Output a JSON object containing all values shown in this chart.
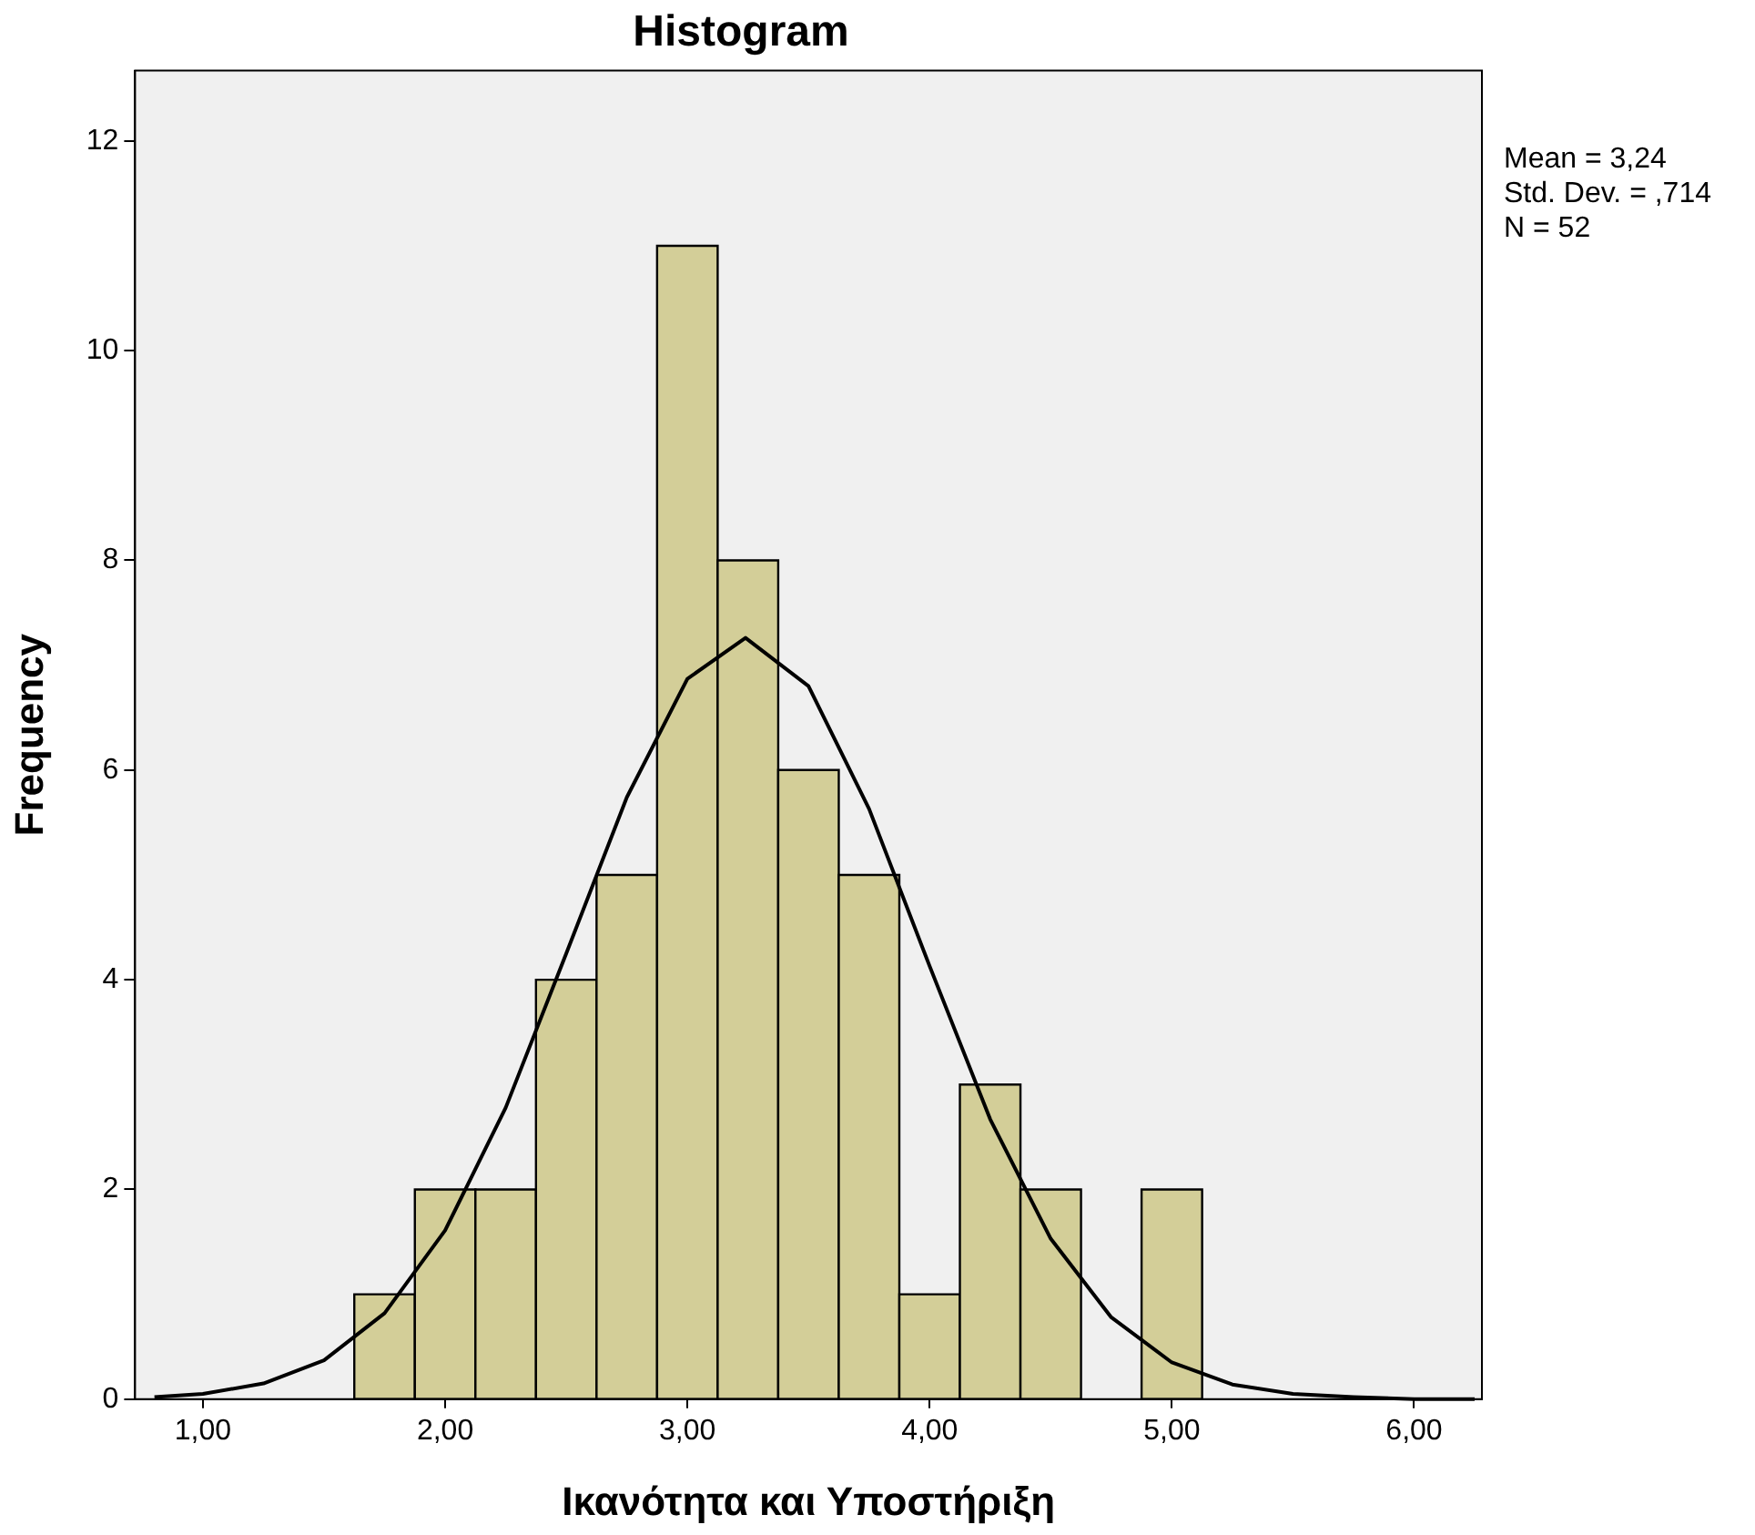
{
  "chart_data": {
    "type": "histogram",
    "title": "Histogram",
    "xlabel": "Ικανότητα και Υποστήριξη",
    "ylabel": "Frequency",
    "bins": [
      1.625,
      1.875,
      2.125,
      2.375,
      2.625,
      2.875,
      3.125,
      3.375,
      3.625,
      3.875,
      4.125,
      4.375,
      4.625,
      4.875,
      5.125
    ],
    "values": [
      1,
      2,
      2,
      4,
      5,
      11,
      8,
      6,
      5,
      1,
      3,
      2,
      0,
      2
    ],
    "color": "#d3ce98",
    "series": [
      {
        "type": "line",
        "color": "#000000",
        "x": [
          0.8,
          1.0,
          1.25,
          1.5,
          1.75,
          2.0,
          2.25,
          2.5,
          2.75,
          3.0,
          3.24,
          3.5,
          3.75,
          4.0,
          4.25,
          4.5,
          4.75,
          5.0,
          5.25,
          5.5,
          5.75,
          6.0,
          6.25
        ],
        "values": [
          0.02,
          0.05,
          0.15,
          0.37,
          0.82,
          1.61,
          2.78,
          4.25,
          5.74,
          6.87,
          7.26,
          6.8,
          5.63,
          4.13,
          2.67,
          1.53,
          0.78,
          0.35,
          0.14,
          0.05,
          0.02,
          0.0,
          0.0
        ]
      }
    ],
    "xlim": [
      0.72,
      6.28
    ],
    "xticks": [
      {
        "value": 1,
        "label": "1,00"
      },
      {
        "value": 2,
        "label": "2,00"
      },
      {
        "value": 3,
        "label": "3,00"
      },
      {
        "value": 4,
        "label": "4,00"
      },
      {
        "value": 5,
        "label": "5,00"
      },
      {
        "value": 6,
        "label": "6,00"
      }
    ],
    "ylim": [
      0,
      12.67
    ],
    "yticks": [
      0,
      2,
      4,
      6,
      8,
      10,
      12
    ],
    "annotations": [
      "Mean = 3,24",
      "Std. Dev. = ,714",
      "N = 52"
    ],
    "grid": false,
    "legend": false,
    "marker": "none"
  }
}
